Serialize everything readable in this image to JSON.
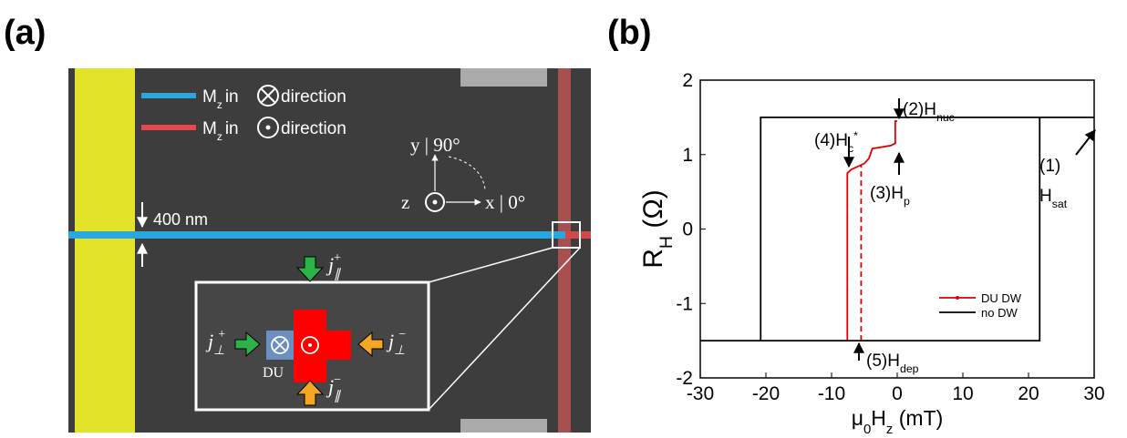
{
  "panel_labels": [
    "(a)",
    "(b)"
  ],
  "panel_a": {
    "legend": [
      {
        "color": "#29a8e0",
        "symbol": "M",
        "sub": "z",
        "pre": "in",
        "post": "direction"
      },
      {
        "color": "#e8474b",
        "symbol": "M",
        "sub": "z",
        "pre": "in",
        "post": "direction"
      }
    ],
    "axes": {
      "y": "y | 90°",
      "z": "z",
      "x": "x | 0°"
    },
    "width_label": "400 nm",
    "du_label": "DU",
    "currents": [
      {
        "main": "j",
        "sub": "∥",
        "sup": "+"
      },
      {
        "main": "j",
        "sub": "⊥",
        "sup": "+"
      },
      {
        "main": "j",
        "sub": "⊥",
        "sup": "−"
      },
      {
        "main": "j",
        "sub": "∥",
        "sup": "−"
      }
    ]
  },
  "chart_data": {
    "type": "line",
    "x_label": [
      "μ",
      "0",
      "H",
      "z",
      " (mT)"
    ],
    "y_label": [
      "R",
      "H",
      " (Ω)"
    ],
    "xlim": [
      -30,
      30
    ],
    "xticks": [
      -30,
      -20,
      -10,
      0,
      10,
      20,
      30
    ],
    "ylim": [
      -2,
      2
    ],
    "yticks": [
      -2,
      -1,
      0,
      1,
      2
    ],
    "legend": "lower right",
    "series": [
      {
        "name": "DU DW",
        "color": "#e00000",
        "x": [
          -7.6,
          -7.6,
          -7,
          -5,
          -4.3,
          -3.8,
          -1,
          -0.3,
          -0.3,
          0
        ],
        "values": [
          -1.5,
          0.75,
          0.8,
          0.88,
          0.95,
          1.08,
          1.12,
          1.15,
          1.45,
          1.45
        ]
      },
      {
        "name": "no DW",
        "color": "#000000",
        "x": [
          -30,
          21.7,
          21.7,
          30,
          -20.8,
          -20.8
        ],
        "values": [
          -1.5,
          -1.5,
          1.5,
          1.5,
          1.5,
          -1.5
        ]
      }
    ],
    "guides": [
      {
        "x": [
          -5.5,
          -5.5
        ],
        "values": [
          -1.5,
          0.85
        ],
        "color": "#e00000",
        "dashed": true
      }
    ],
    "annotations": [
      {
        "text": "(2)H",
        "sub": "nuc"
      },
      {
        "text": "(4)H",
        "sub": "c",
        "sup": "*"
      },
      {
        "text": "(3)H",
        "sub": "p"
      },
      {
        "text": "(1)"
      },
      {
        "text": "H",
        "sub": "sat"
      },
      {
        "text": "(5)H",
        "sub": "dep"
      }
    ]
  }
}
